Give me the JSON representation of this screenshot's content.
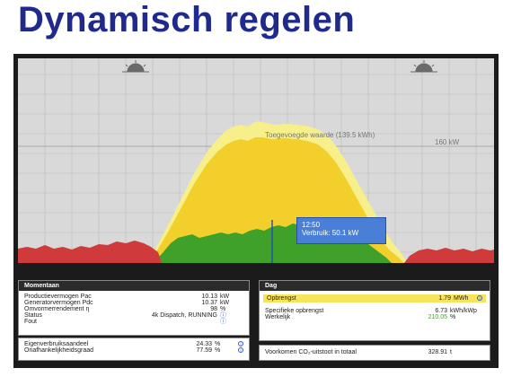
{
  "slide_title": "Dynamisch regelen",
  "chart": {
    "added_value_label": "Toegevoegde waarde (139.5 kWh)",
    "max_label": "160 kW",
    "tooltip_time": "12:50",
    "tooltip_value": "Verbruik: 50.1 kW"
  },
  "momentaan": {
    "header": "Momentaan",
    "rows": [
      {
        "label": "Productievermogen Pac",
        "value": "10.13",
        "unit": "kW"
      },
      {
        "label": "Generatorvermogen Pdc",
        "value": "10.37",
        "unit": "kW"
      },
      {
        "label": "Omvormerrendement η",
        "value": "98",
        "unit": "%"
      },
      {
        "label": "Status",
        "value": "4k Dispatch, RUNNING",
        "unit": "ⓘ"
      },
      {
        "label": "Fout",
        "value": "",
        "unit": "ⓘ"
      }
    ],
    "rows2": [
      {
        "label": "Eigenverbruiksaandeel",
        "value": "24.33",
        "unit": "%"
      },
      {
        "label": "Onafhankelijkheidsgraad",
        "value": "77.59",
        "unit": "%"
      }
    ]
  },
  "dag": {
    "header": "Dag",
    "opbrengst_label": "Opbrengst",
    "opbrengst_value": "1.79",
    "opbrengst_unit": "MWh",
    "spec_label": "Specifieke opbrengst",
    "spec_value": "6.73",
    "spec_unit": "kWh/kWp",
    "werkelijk_label": "Werkelijk",
    "werkelijk_value": "210.05",
    "werkelijk_unit": "%",
    "co2_label": "Voorkomen CO₂-uitstoot in totaal",
    "co2_value": "328.91",
    "co2_unit": "t"
  },
  "colors": {
    "title": "#1f2a8c",
    "production_fill": "#f7ef8a",
    "yield_fill": "#f2cf2a",
    "consumption_fill": "#3fa12a",
    "grid_fill": "#cf3b3b",
    "highlight": "#f7e45a"
  }
}
